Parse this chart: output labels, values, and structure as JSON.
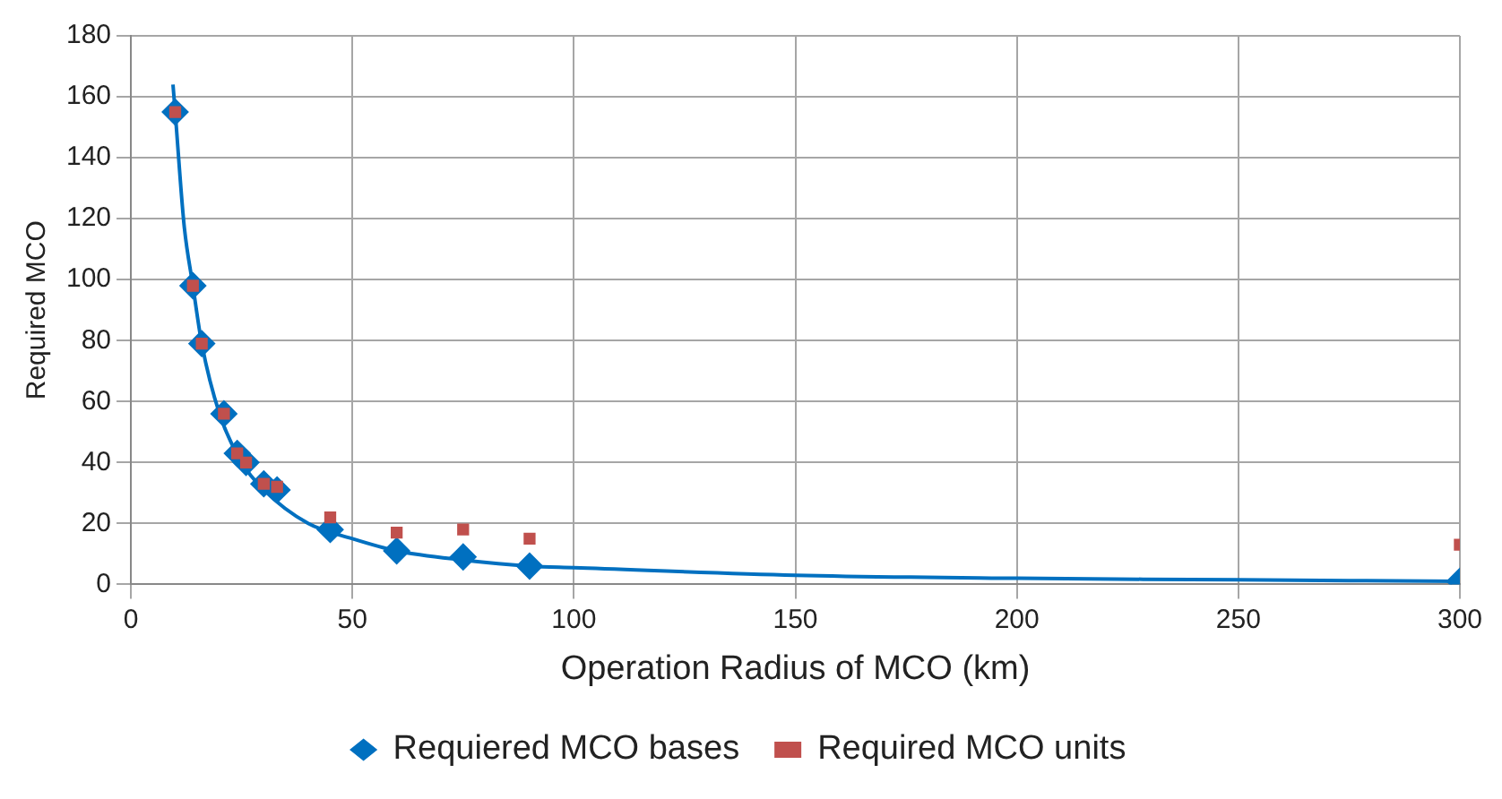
{
  "chart_data": {
    "type": "scatter",
    "xlabel": "Operation Radius of MCO (km)",
    "ylabel": "Required MCO",
    "xlim": [
      0,
      300
    ],
    "xticks": [
      0,
      50,
      100,
      150,
      200,
      250,
      300
    ],
    "ylim": [
      0,
      180
    ],
    "yticks": [
      0,
      20,
      40,
      60,
      80,
      100,
      120,
      140,
      160,
      180
    ],
    "grid": true,
    "legend": "bottom",
    "series": [
      {
        "type": "line",
        "color": "#0070c0",
        "marker": "none",
        "line_style": "solid",
        "x": [
          9.5,
          10,
          12,
          14,
          16,
          20,
          25,
          30,
          40,
          50,
          60,
          75,
          90,
          100,
          150,
          200,
          250,
          300
        ],
        "values": [
          164,
          155,
          118,
          98,
          79,
          56,
          40,
          31,
          20,
          15,
          11,
          8,
          6,
          5.5,
          3,
          2,
          1.5,
          1
        ]
      },
      {
        "name": "Requiered MCO bases",
        "color": "#0070c0",
        "marker": "diamond",
        "x": [
          10,
          14,
          16,
          21,
          24,
          26,
          30,
          33,
          45,
          60,
          75,
          90,
          300
        ],
        "values": [
          155,
          98,
          79,
          56,
          43,
          40,
          33,
          31,
          18,
          11,
          9,
          6,
          1
        ]
      },
      {
        "name": "Required MCO units",
        "color": "#c0504d",
        "marker": "square",
        "x": [
          10,
          14,
          16,
          21,
          24,
          26,
          30,
          33,
          45,
          60,
          75,
          90,
          300
        ],
        "values": [
          155,
          98,
          79,
          56,
          43,
          40,
          33,
          32,
          22,
          17,
          18,
          15,
          13
        ]
      }
    ]
  }
}
